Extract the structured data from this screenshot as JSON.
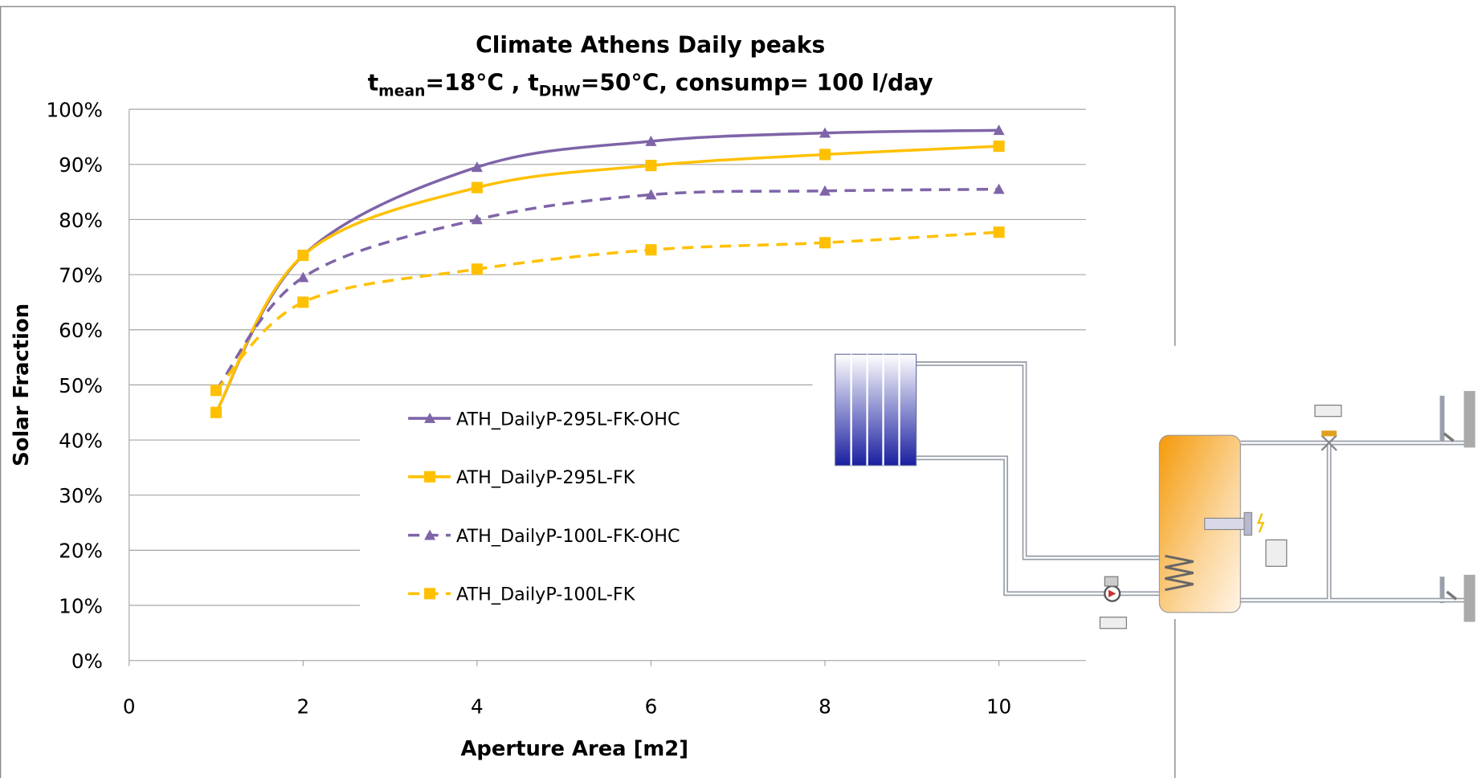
{
  "chart_data": {
    "type": "line",
    "title": "Climate Athens Daily peaks",
    "subtitle": [
      "t",
      "mean",
      "=18°C ,  t",
      "DHW",
      "=50°C, consump= 100 l/day"
    ],
    "x_label": "Aperture Area [m2]",
    "y_label": "Solar Fraction",
    "x": [
      1,
      2,
      4,
      6,
      8,
      10
    ],
    "series": [
      {
        "name": "ATH_DailyP-295L-FK-OHC",
        "color": "#7f64a8",
        "marker": "triangle",
        "dashed": false,
        "values": [
          45,
          73.5,
          89.5,
          94.2,
          95.7,
          96.2
        ]
      },
      {
        "name": "ATH_DailyP-295L-FK",
        "color": "#ffc000",
        "marker": "square",
        "dashed": false,
        "values": [
          45,
          73.5,
          85.8,
          89.8,
          91.8,
          93.3
        ]
      },
      {
        "name": "ATH_DailyP-100L-FK-OHC",
        "color": "#7f64a8",
        "marker": "triangle",
        "dashed": true,
        "values": [
          49,
          69.5,
          80,
          84.5,
          85.2,
          85.5
        ]
      },
      {
        "name": "ATH_DailyP-100L-FK",
        "color": "#ffc000",
        "marker": "square",
        "dashed": true,
        "values": [
          49,
          65,
          71,
          74.5,
          75.8,
          77.7
        ]
      }
    ],
    "xlim": [
      0,
      11
    ],
    "xticks": [
      0,
      2,
      4,
      6,
      8,
      10
    ],
    "ylim": [
      0,
      100
    ],
    "yticks": [
      {
        "value": 0,
        "label": "0%"
      },
      {
        "value": 10,
        "label": "10%"
      },
      {
        "value": 20,
        "label": "20%"
      },
      {
        "value": 30,
        "label": "30%"
      },
      {
        "value": 40,
        "label": "40%"
      },
      {
        "value": 50,
        "label": "50%"
      },
      {
        "value": 60,
        "label": "60%"
      },
      {
        "value": 70,
        "label": "70%"
      },
      {
        "value": 80,
        "label": "80%"
      },
      {
        "value": 90,
        "label": "90%"
      },
      {
        "value": 100,
        "label": "100%"
      }
    ],
    "grid": true,
    "legend": "center"
  }
}
